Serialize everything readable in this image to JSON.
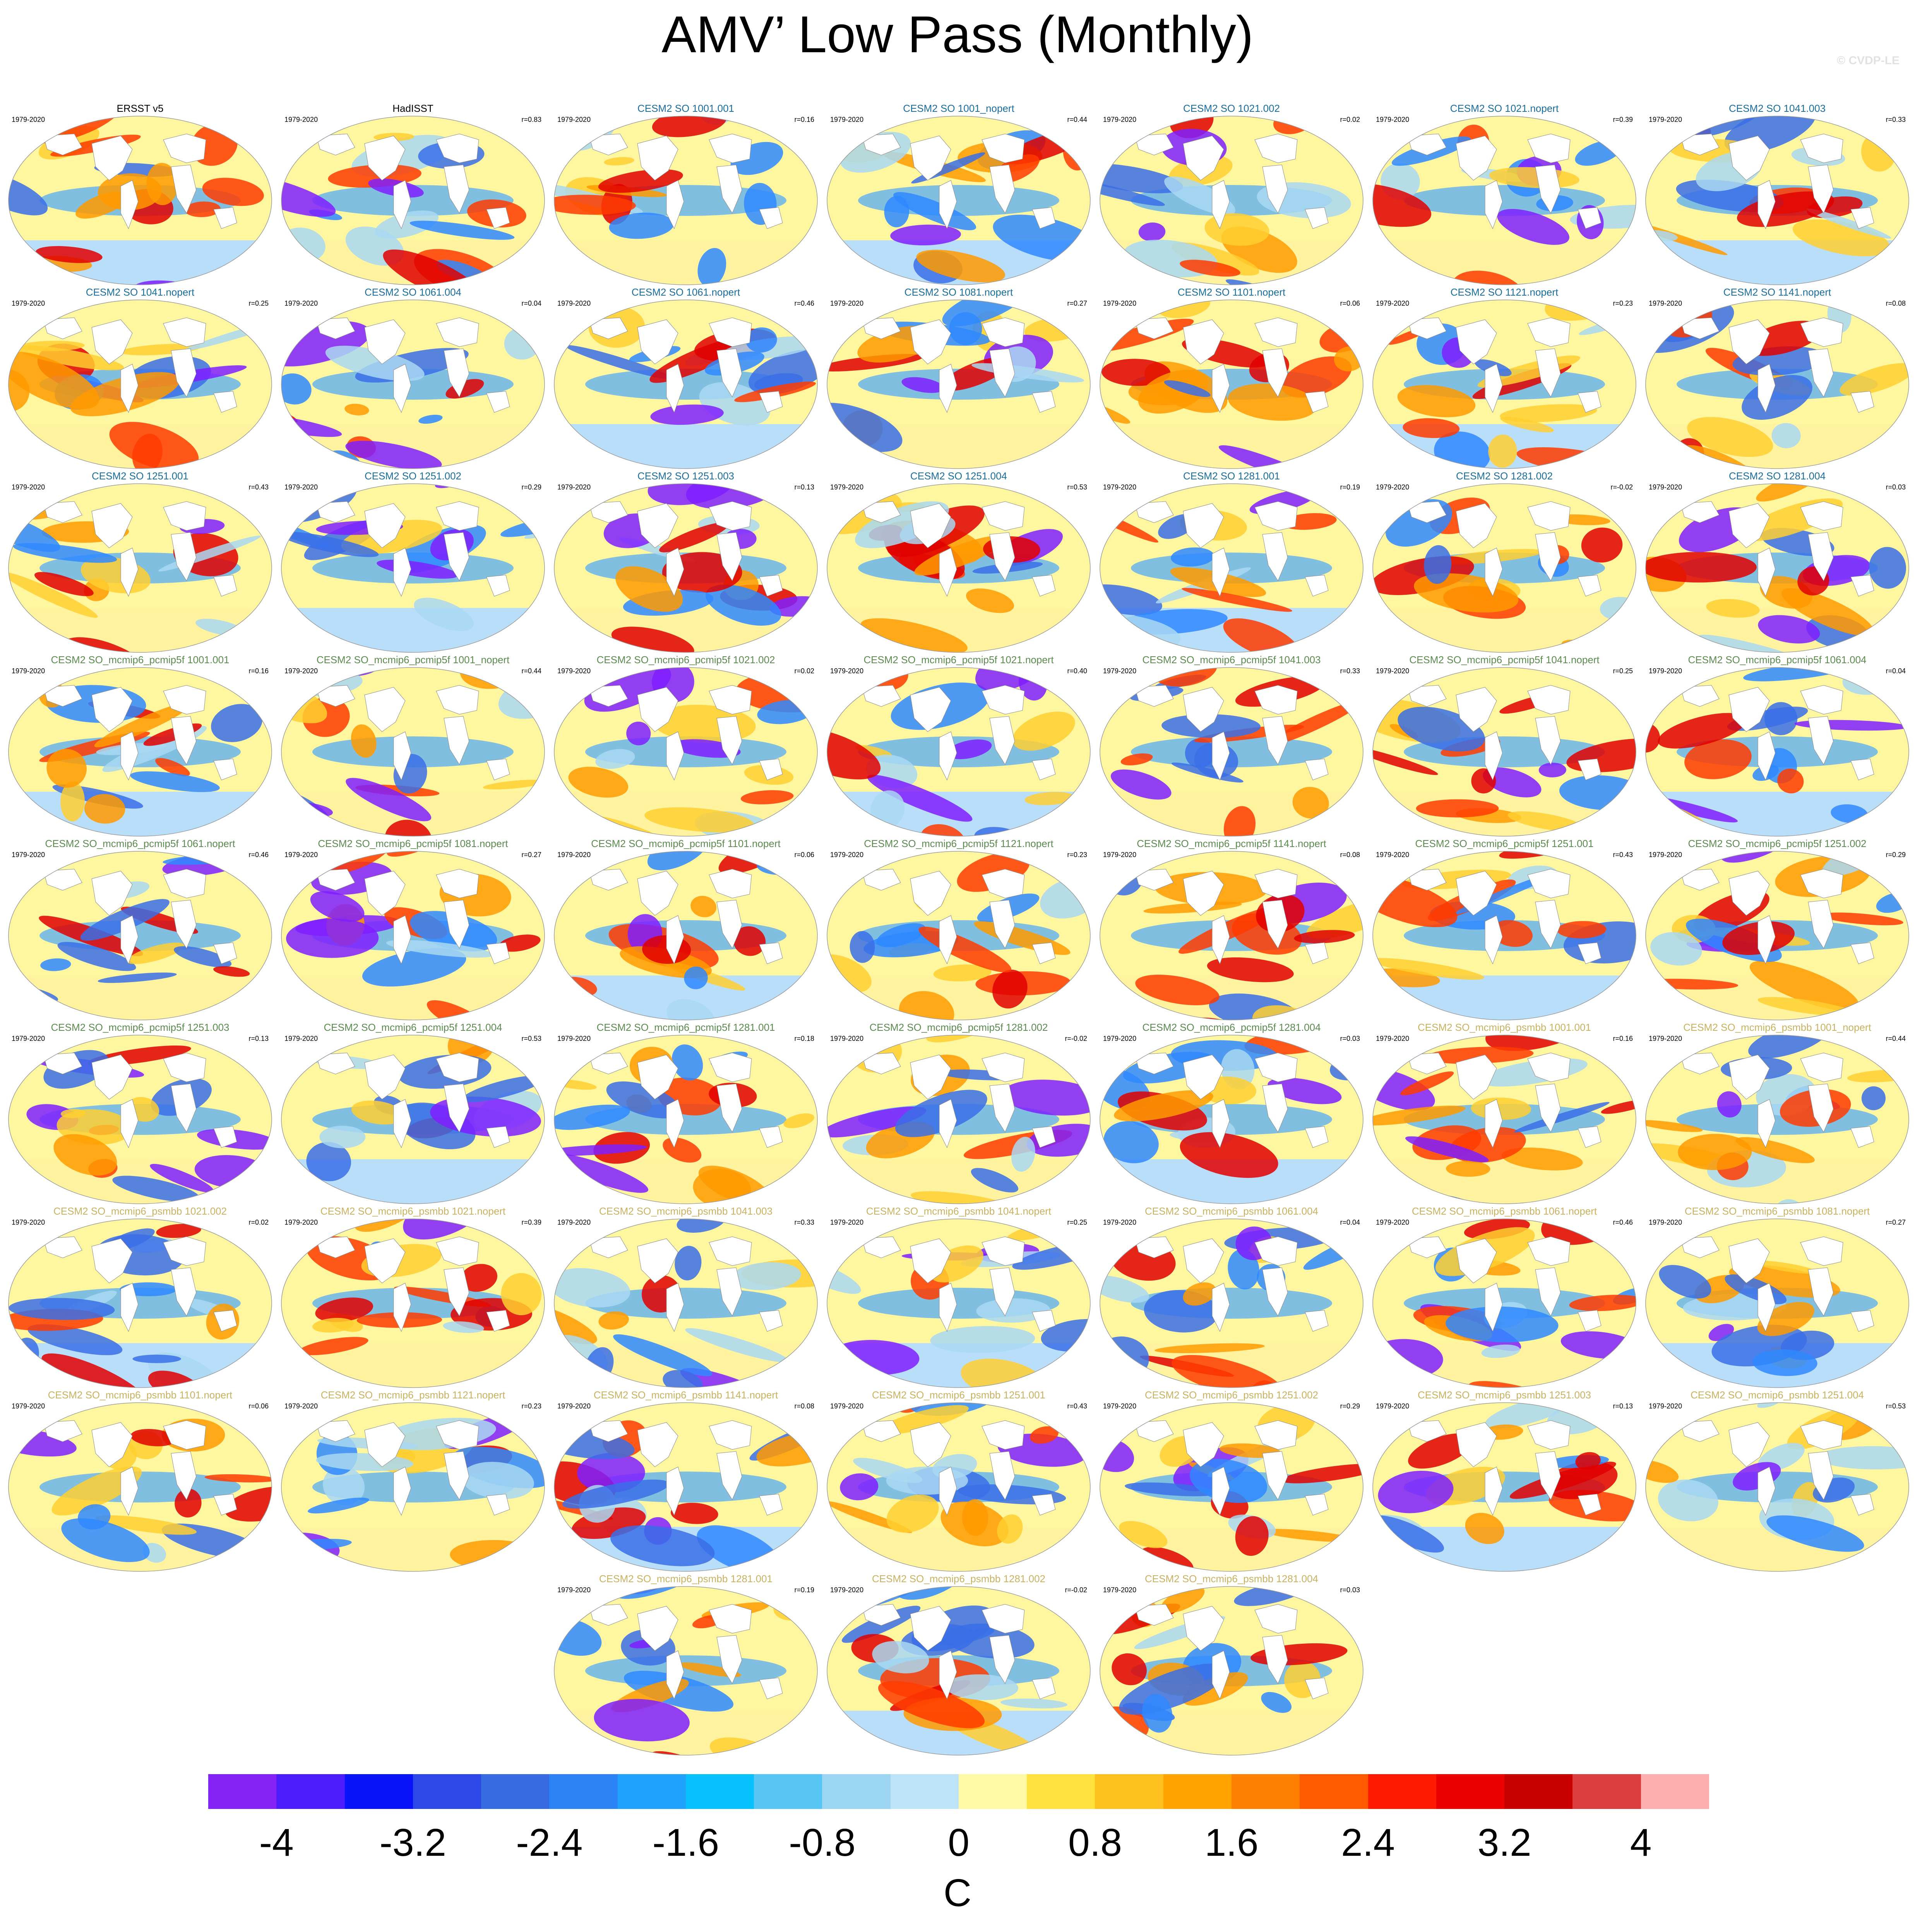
{
  "title": "AMV’ Low Pass (Monthly)",
  "credit": "© CVDP-LE",
  "period": "1979-2020",
  "palette": [
    "#ff0000",
    "#ffa500",
    "#ffe44d",
    "#ffffff",
    "#a9d8f2",
    "#2f88ff",
    "#2f2fff",
    "#7f1fff",
    "#ffb3b3"
  ],
  "panels": [
    {
      "name": "ERSST v5",
      "r": "",
      "group": "obs"
    },
    {
      "name": "HadISST",
      "r": "r=0.83",
      "group": "obs"
    },
    {
      "name": "CESM2 SO 1001.001",
      "r": "r=0.16",
      "group": "cesm"
    },
    {
      "name": "CESM2 SO 1001_nopert",
      "r": "r=0.44",
      "group": "cesm"
    },
    {
      "name": "CESM2 SO 1021.002",
      "r": "r=0.02",
      "group": "cesm"
    },
    {
      "name": "CESM2 SO 1021.nopert",
      "r": "r=0.39",
      "group": "cesm"
    },
    {
      "name": "CESM2 SO 1041.003",
      "r": "r=0.33",
      "group": "cesm"
    },
    {
      "name": "CESM2 SO 1041.nopert",
      "r": "r=0.25",
      "group": "cesm"
    },
    {
      "name": "CESM2 SO 1061.004",
      "r": "r=0.04",
      "group": "cesm"
    },
    {
      "name": "CESM2 SO 1061.nopert",
      "r": "r=0.46",
      "group": "cesm"
    },
    {
      "name": "CESM2 SO 1081.nopert",
      "r": "r=0.27",
      "group": "cesm"
    },
    {
      "name": "CESM2 SO 1101.nopert",
      "r": "r=0.06",
      "group": "cesm"
    },
    {
      "name": "CESM2 SO 1121.nopert",
      "r": "r=0.23",
      "group": "cesm"
    },
    {
      "name": "CESM2 SO 1141.nopert",
      "r": "r=0.08",
      "group": "cesm"
    },
    {
      "name": "CESM2 SO 1251.001",
      "r": "r=0.43",
      "group": "cesm"
    },
    {
      "name": "CESM2 SO 1251.002",
      "r": "r=0.29",
      "group": "cesm"
    },
    {
      "name": "CESM2 SO 1251.003",
      "r": "r=0.13",
      "group": "cesm"
    },
    {
      "name": "CESM2 SO 1251.004",
      "r": "r=0.53",
      "group": "cesm"
    },
    {
      "name": "CESM2 SO 1281.001",
      "r": "r=0.19",
      "group": "cesm"
    },
    {
      "name": "CESM2 SO 1281.002",
      "r": "r=-0.02",
      "group": "cesm"
    },
    {
      "name": "CESM2 SO 1281.004",
      "r": "r=0.03",
      "group": "cesm"
    },
    {
      "name": "CESM2 SO_mcmip6_pcmip5f 1001.001",
      "r": "r=0.16",
      "group": "pcmip"
    },
    {
      "name": "CESM2 SO_mcmip6_pcmip5f 1001_nopert",
      "r": "r=0.44",
      "group": "pcmip"
    },
    {
      "name": "CESM2 SO_mcmip6_pcmip5f 1021.002",
      "r": "r=0.02",
      "group": "pcmip"
    },
    {
      "name": "CESM2 SO_mcmip6_pcmip5f 1021.nopert",
      "r": "r=0.40",
      "group": "pcmip"
    },
    {
      "name": "CESM2 SO_mcmip6_pcmip5f 1041.003",
      "r": "r=0.33",
      "group": "pcmip"
    },
    {
      "name": "CESM2 SO_mcmip6_pcmip5f 1041.nopert",
      "r": "r=0.25",
      "group": "pcmip"
    },
    {
      "name": "CESM2 SO_mcmip6_pcmip5f 1061.004",
      "r": "r=0.04",
      "group": "pcmip"
    },
    {
      "name": "CESM2 SO_mcmip6_pcmip5f 1061.nopert",
      "r": "r=0.46",
      "group": "pcmip"
    },
    {
      "name": "CESM2 SO_mcmip6_pcmip5f 1081.nopert",
      "r": "r=0.27",
      "group": "pcmip"
    },
    {
      "name": "CESM2 SO_mcmip6_pcmip5f 1101.nopert",
      "r": "r=0.06",
      "group": "pcmip"
    },
    {
      "name": "CESM2 SO_mcmip6_pcmip5f 1121.nopert",
      "r": "r=0.23",
      "group": "pcmip"
    },
    {
      "name": "CESM2 SO_mcmip6_pcmip5f 1141.nopert",
      "r": "r=0.08",
      "group": "pcmip"
    },
    {
      "name": "CESM2 SO_mcmip6_pcmip5f 1251.001",
      "r": "r=0.43",
      "group": "pcmip"
    },
    {
      "name": "CESM2 SO_mcmip6_pcmip5f 1251.002",
      "r": "r=0.29",
      "group": "pcmip"
    },
    {
      "name": "CESM2 SO_mcmip6_pcmip5f 1251.003",
      "r": "r=0.13",
      "group": "pcmip"
    },
    {
      "name": "CESM2 SO_mcmip6_pcmip5f 1251.004",
      "r": "r=0.53",
      "group": "pcmip"
    },
    {
      "name": "CESM2 SO_mcmip6_pcmip5f 1281.001",
      "r": "r=0.18",
      "group": "pcmip"
    },
    {
      "name": "CESM2 SO_mcmip6_pcmip5f 1281.002",
      "r": "r=-0.02",
      "group": "pcmip"
    },
    {
      "name": "CESM2 SO_mcmip6_pcmip5f 1281.004",
      "r": "r=0.03",
      "group": "pcmip"
    },
    {
      "name": "CESM2 SO_mcmip6_psmbb 1001.001",
      "r": "r=0.16",
      "group": "psmbb"
    },
    {
      "name": "CESM2 SO_mcmip6_psmbb 1001_nopert",
      "r": "r=0.44",
      "group": "psmbb"
    },
    {
      "name": "CESM2 SO_mcmip6_psmbb 1021.002",
      "r": "r=0.02",
      "group": "psmbb"
    },
    {
      "name": "CESM2 SO_mcmip6_psmbb 1021.nopert",
      "r": "r=0.39",
      "group": "psmbb"
    },
    {
      "name": "CESM2 SO_mcmip6_psmbb 1041.003",
      "r": "r=0.33",
      "group": "psmbb"
    },
    {
      "name": "CESM2 SO_mcmip6_psmbb 1041.nopert",
      "r": "r=0.25",
      "group": "psmbb"
    },
    {
      "name": "CESM2 SO_mcmip6_psmbb 1061.004",
      "r": "r=0.04",
      "group": "psmbb"
    },
    {
      "name": "CESM2 SO_mcmip6_psmbb 1061.nopert",
      "r": "r=0.46",
      "group": "psmbb"
    },
    {
      "name": "CESM2 SO_mcmip6_psmbb 1081.nopert",
      "r": "r=0.27",
      "group": "psmbb"
    },
    {
      "name": "CESM2 SO_mcmip6_psmbb 1101.nopert",
      "r": "r=0.06",
      "group": "psmbb"
    },
    {
      "name": "CESM2 SO_mcmip6_psmbb 1121.nopert",
      "r": "r=0.23",
      "group": "psmbb"
    },
    {
      "name": "CESM2 SO_mcmip6_psmbb 1141.nopert",
      "r": "r=0.08",
      "group": "psmbb"
    },
    {
      "name": "CESM2 SO_mcmip6_psmbb 1251.001",
      "r": "r=0.43",
      "group": "psmbb"
    },
    {
      "name": "CESM2 SO_mcmip6_psmbb 1251.002",
      "r": "r=0.29",
      "group": "psmbb"
    },
    {
      "name": "CESM2 SO_mcmip6_psmbb 1251.003",
      "r": "r=0.13",
      "group": "psmbb"
    },
    {
      "name": "CESM2 SO_mcmip6_psmbb 1251.004",
      "r": "r=0.53",
      "group": "psmbb"
    },
    {
      "name": "CESM2 SO_mcmip6_psmbb 1281.001",
      "r": "r=0.19",
      "group": "psmbb"
    },
    {
      "name": "CESM2 SO_mcmip6_psmbb 1281.002",
      "r": "r=-0.02",
      "group": "psmbb"
    },
    {
      "name": "CESM2 SO_mcmip6_psmbb 1281.004",
      "r": "r=0.03",
      "group": "psmbb"
    }
  ],
  "colorbar": {
    "units": "C",
    "tick_labels": [
      "-4",
      "-3.2",
      "-2.4",
      "-1.6",
      "-0.8",
      "0",
      "0.8",
      "1.6",
      "2.4",
      "3.2",
      "4"
    ],
    "colors": [
      "#8522f5",
      "#4b1dfd",
      "#0a14fb",
      "#2c48e8",
      "#386be0",
      "#2b83f6",
      "#1ea2fb",
      "#08c0fd",
      "#57c6f5",
      "#9bd5f2",
      "#bfe3f6",
      "#fff9a6",
      "#ffe23e",
      "#fec01e",
      "#ffa200",
      "#ff8000",
      "#ff5a00",
      "#ff1a00",
      "#ec0000",
      "#c80000",
      "#da3e3e",
      "#ffaeae"
    ]
  }
}
